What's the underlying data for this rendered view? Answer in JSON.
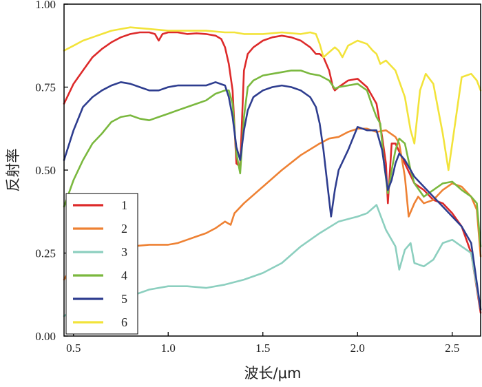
{
  "chart_data": {
    "type": "line",
    "title": "",
    "xlabel": "波长/μm",
    "ylabel": "反射率",
    "xlim": [
      0.45,
      2.65
    ],
    "ylim": [
      0,
      1
    ],
    "x_ticks": [
      "0.5",
      "1.0",
      "1.5",
      "2.0",
      "2.5"
    ],
    "y_ticks": [
      "0.00",
      "0.25",
      "0.50",
      "0.75",
      "1.00"
    ],
    "grid": false,
    "legend_position": "bottom-left",
    "series": [
      {
        "name": "1",
        "color": "#dd2a2a",
        "points": [
          [
            0.45,
            0.7
          ],
          [
            0.5,
            0.76
          ],
          [
            0.55,
            0.8
          ],
          [
            0.6,
            0.84
          ],
          [
            0.65,
            0.865
          ],
          [
            0.7,
            0.885
          ],
          [
            0.75,
            0.9
          ],
          [
            0.8,
            0.91
          ],
          [
            0.85,
            0.915
          ],
          [
            0.9,
            0.915
          ],
          [
            0.93,
            0.91
          ],
          [
            0.95,
            0.89
          ],
          [
            0.97,
            0.91
          ],
          [
            1.0,
            0.915
          ],
          [
            1.05,
            0.915
          ],
          [
            1.1,
            0.91
          ],
          [
            1.15,
            0.912
          ],
          [
            1.2,
            0.91
          ],
          [
            1.25,
            0.905
          ],
          [
            1.28,
            0.895
          ],
          [
            1.3,
            0.87
          ],
          [
            1.32,
            0.82
          ],
          [
            1.34,
            0.74
          ],
          [
            1.36,
            0.52
          ],
          [
            1.38,
            0.51
          ],
          [
            1.4,
            0.8
          ],
          [
            1.42,
            0.85
          ],
          [
            1.45,
            0.87
          ],
          [
            1.5,
            0.89
          ],
          [
            1.55,
            0.9
          ],
          [
            1.6,
            0.905
          ],
          [
            1.65,
            0.9
          ],
          [
            1.7,
            0.89
          ],
          [
            1.75,
            0.87
          ],
          [
            1.78,
            0.85
          ],
          [
            1.8,
            0.85
          ],
          [
            1.82,
            0.84
          ],
          [
            1.85,
            0.8
          ],
          [
            1.87,
            0.75
          ],
          [
            1.88,
            0.74
          ],
          [
            1.9,
            0.75
          ],
          [
            1.95,
            0.77
          ],
          [
            2.0,
            0.775
          ],
          [
            2.05,
            0.75
          ],
          [
            2.1,
            0.7
          ],
          [
            2.13,
            0.6
          ],
          [
            2.15,
            0.52
          ],
          [
            2.16,
            0.4
          ],
          [
            2.18,
            0.58
          ],
          [
            2.2,
            0.58
          ],
          [
            2.25,
            0.52
          ],
          [
            2.3,
            0.46
          ],
          [
            2.35,
            0.44
          ],
          [
            2.4,
            0.41
          ],
          [
            2.45,
            0.4
          ],
          [
            2.5,
            0.37
          ],
          [
            2.55,
            0.33
          ],
          [
            2.6,
            0.25
          ],
          [
            2.65,
            0.07
          ]
        ]
      },
      {
        "name": "2",
        "color": "#ee8133",
        "points": [
          [
            0.45,
            0.17
          ],
          [
            0.5,
            0.22
          ],
          [
            0.55,
            0.235
          ],
          [
            0.6,
            0.245
          ],
          [
            0.65,
            0.255
          ],
          [
            0.7,
            0.265
          ],
          [
            0.8,
            0.27
          ],
          [
            0.9,
            0.275
          ],
          [
            1.0,
            0.275
          ],
          [
            1.05,
            0.28
          ],
          [
            1.1,
            0.29
          ],
          [
            1.15,
            0.3
          ],
          [
            1.2,
            0.31
          ],
          [
            1.25,
            0.325
          ],
          [
            1.3,
            0.345
          ],
          [
            1.33,
            0.335
          ],
          [
            1.35,
            0.37
          ],
          [
            1.4,
            0.4
          ],
          [
            1.5,
            0.45
          ],
          [
            1.6,
            0.5
          ],
          [
            1.7,
            0.545
          ],
          [
            1.8,
            0.58
          ],
          [
            1.85,
            0.595
          ],
          [
            1.9,
            0.6
          ],
          [
            1.95,
            0.615
          ],
          [
            2.0,
            0.625
          ],
          [
            2.05,
            0.625
          ],
          [
            2.1,
            0.615
          ],
          [
            2.15,
            0.62
          ],
          [
            2.2,
            0.6
          ],
          [
            2.22,
            0.58
          ],
          [
            2.25,
            0.48
          ],
          [
            2.27,
            0.36
          ],
          [
            2.3,
            0.4
          ],
          [
            2.32,
            0.42
          ],
          [
            2.35,
            0.4
          ],
          [
            2.4,
            0.41
          ],
          [
            2.45,
            0.44
          ],
          [
            2.5,
            0.46
          ],
          [
            2.55,
            0.45
          ],
          [
            2.6,
            0.42
          ],
          [
            2.63,
            0.38
          ],
          [
            2.65,
            0.24
          ]
        ]
      },
      {
        "name": "3",
        "color": "#8ccfbf",
        "points": [
          [
            0.45,
            0.06
          ],
          [
            0.5,
            0.08
          ],
          [
            0.6,
            0.095
          ],
          [
            0.7,
            0.1
          ],
          [
            0.8,
            0.12
          ],
          [
            0.9,
            0.14
          ],
          [
            1.0,
            0.15
          ],
          [
            1.1,
            0.15
          ],
          [
            1.2,
            0.145
          ],
          [
            1.3,
            0.155
          ],
          [
            1.4,
            0.17
          ],
          [
            1.5,
            0.19
          ],
          [
            1.6,
            0.22
          ],
          [
            1.7,
            0.27
          ],
          [
            1.8,
            0.31
          ],
          [
            1.9,
            0.345
          ],
          [
            2.0,
            0.36
          ],
          [
            2.05,
            0.37
          ],
          [
            2.1,
            0.395
          ],
          [
            2.15,
            0.32
          ],
          [
            2.2,
            0.27
          ],
          [
            2.22,
            0.2
          ],
          [
            2.25,
            0.26
          ],
          [
            2.28,
            0.28
          ],
          [
            2.3,
            0.22
          ],
          [
            2.35,
            0.21
          ],
          [
            2.4,
            0.23
          ],
          [
            2.45,
            0.28
          ],
          [
            2.5,
            0.29
          ],
          [
            2.55,
            0.27
          ],
          [
            2.6,
            0.25
          ],
          [
            2.65,
            0.08
          ]
        ]
      },
      {
        "name": "4",
        "color": "#7ab83e",
        "points": [
          [
            0.45,
            0.39
          ],
          [
            0.5,
            0.47
          ],
          [
            0.55,
            0.53
          ],
          [
            0.6,
            0.58
          ],
          [
            0.65,
            0.61
          ],
          [
            0.7,
            0.645
          ],
          [
            0.75,
            0.66
          ],
          [
            0.8,
            0.665
          ],
          [
            0.85,
            0.655
          ],
          [
            0.9,
            0.65
          ],
          [
            0.95,
            0.66
          ],
          [
            1.0,
            0.67
          ],
          [
            1.05,
            0.68
          ],
          [
            1.1,
            0.69
          ],
          [
            1.15,
            0.7
          ],
          [
            1.2,
            0.71
          ],
          [
            1.25,
            0.73
          ],
          [
            1.3,
            0.74
          ],
          [
            1.32,
            0.74
          ],
          [
            1.34,
            0.7
          ],
          [
            1.36,
            0.55
          ],
          [
            1.38,
            0.49
          ],
          [
            1.4,
            0.66
          ],
          [
            1.42,
            0.75
          ],
          [
            1.45,
            0.77
          ],
          [
            1.5,
            0.785
          ],
          [
            1.55,
            0.79
          ],
          [
            1.6,
            0.795
          ],
          [
            1.65,
            0.8
          ],
          [
            1.7,
            0.8
          ],
          [
            1.75,
            0.79
          ],
          [
            1.8,
            0.785
          ],
          [
            1.85,
            0.77
          ],
          [
            1.88,
            0.745
          ],
          [
            1.9,
            0.75
          ],
          [
            1.95,
            0.755
          ],
          [
            2.0,
            0.76
          ],
          [
            2.05,
            0.74
          ],
          [
            2.08,
            0.69
          ],
          [
            2.1,
            0.66
          ],
          [
            2.12,
            0.64
          ],
          [
            2.14,
            0.52
          ],
          [
            2.16,
            0.43
          ],
          [
            2.18,
            0.5
          ],
          [
            2.2,
            0.56
          ],
          [
            2.22,
            0.595
          ],
          [
            2.25,
            0.58
          ],
          [
            2.28,
            0.5
          ],
          [
            2.3,
            0.46
          ],
          [
            2.35,
            0.42
          ],
          [
            2.4,
            0.44
          ],
          [
            2.45,
            0.46
          ],
          [
            2.5,
            0.465
          ],
          [
            2.55,
            0.44
          ],
          [
            2.6,
            0.42
          ],
          [
            2.63,
            0.4
          ],
          [
            2.65,
            0.27
          ]
        ]
      },
      {
        "name": "5",
        "color": "#2e3d8f",
        "points": [
          [
            0.45,
            0.53
          ],
          [
            0.5,
            0.62
          ],
          [
            0.55,
            0.69
          ],
          [
            0.6,
            0.72
          ],
          [
            0.65,
            0.74
          ],
          [
            0.7,
            0.755
          ],
          [
            0.75,
            0.765
          ],
          [
            0.8,
            0.76
          ],
          [
            0.85,
            0.75
          ],
          [
            0.9,
            0.74
          ],
          [
            0.95,
            0.74
          ],
          [
            1.0,
            0.75
          ],
          [
            1.05,
            0.755
          ],
          [
            1.1,
            0.755
          ],
          [
            1.15,
            0.755
          ],
          [
            1.2,
            0.755
          ],
          [
            1.25,
            0.765
          ],
          [
            1.3,
            0.755
          ],
          [
            1.32,
            0.72
          ],
          [
            1.34,
            0.66
          ],
          [
            1.36,
            0.57
          ],
          [
            1.38,
            0.53
          ],
          [
            1.4,
            0.62
          ],
          [
            1.42,
            0.68
          ],
          [
            1.45,
            0.72
          ],
          [
            1.5,
            0.74
          ],
          [
            1.55,
            0.75
          ],
          [
            1.6,
            0.755
          ],
          [
            1.65,
            0.75
          ],
          [
            1.7,
            0.74
          ],
          [
            1.75,
            0.72
          ],
          [
            1.78,
            0.69
          ],
          [
            1.8,
            0.64
          ],
          [
            1.82,
            0.56
          ],
          [
            1.84,
            0.46
          ],
          [
            1.86,
            0.36
          ],
          [
            1.88,
            0.44
          ],
          [
            1.9,
            0.5
          ],
          [
            1.95,
            0.56
          ],
          [
            2.0,
            0.63
          ],
          [
            2.05,
            0.62
          ],
          [
            2.1,
            0.62
          ],
          [
            2.13,
            0.56
          ],
          [
            2.16,
            0.44
          ],
          [
            2.18,
            0.47
          ],
          [
            2.2,
            0.52
          ],
          [
            2.22,
            0.55
          ],
          [
            2.25,
            0.53
          ],
          [
            2.3,
            0.48
          ],
          [
            2.35,
            0.45
          ],
          [
            2.4,
            0.42
          ],
          [
            2.45,
            0.39
          ],
          [
            2.5,
            0.36
          ],
          [
            2.55,
            0.33
          ],
          [
            2.6,
            0.28
          ],
          [
            2.65,
            0.08
          ]
        ]
      },
      {
        "name": "6",
        "color": "#f2e33a",
        "points": [
          [
            0.45,
            0.86
          ],
          [
            0.5,
            0.875
          ],
          [
            0.55,
            0.89
          ],
          [
            0.6,
            0.9
          ],
          [
            0.65,
            0.91
          ],
          [
            0.7,
            0.92
          ],
          [
            0.75,
            0.925
          ],
          [
            0.8,
            0.93
          ],
          [
            0.9,
            0.925
          ],
          [
            1.0,
            0.92
          ],
          [
            1.1,
            0.92
          ],
          [
            1.2,
            0.92
          ],
          [
            1.3,
            0.915
          ],
          [
            1.35,
            0.915
          ],
          [
            1.4,
            0.91
          ],
          [
            1.5,
            0.91
          ],
          [
            1.6,
            0.915
          ],
          [
            1.7,
            0.91
          ],
          [
            1.75,
            0.915
          ],
          [
            1.78,
            0.91
          ],
          [
            1.8,
            0.88
          ],
          [
            1.82,
            0.84
          ],
          [
            1.85,
            0.855
          ],
          [
            1.88,
            0.87
          ],
          [
            1.9,
            0.86
          ],
          [
            1.92,
            0.84
          ],
          [
            1.95,
            0.875
          ],
          [
            2.0,
            0.89
          ],
          [
            2.05,
            0.88
          ],
          [
            2.08,
            0.86
          ],
          [
            2.1,
            0.85
          ],
          [
            2.12,
            0.82
          ],
          [
            2.15,
            0.83
          ],
          [
            2.2,
            0.8
          ],
          [
            2.25,
            0.72
          ],
          [
            2.28,
            0.62
          ],
          [
            2.3,
            0.58
          ],
          [
            2.33,
            0.74
          ],
          [
            2.36,
            0.79
          ],
          [
            2.4,
            0.76
          ],
          [
            2.45,
            0.61
          ],
          [
            2.48,
            0.5
          ],
          [
            2.5,
            0.58
          ],
          [
            2.55,
            0.78
          ],
          [
            2.6,
            0.79
          ],
          [
            2.63,
            0.77
          ],
          [
            2.65,
            0.74
          ]
        ]
      }
    ]
  }
}
